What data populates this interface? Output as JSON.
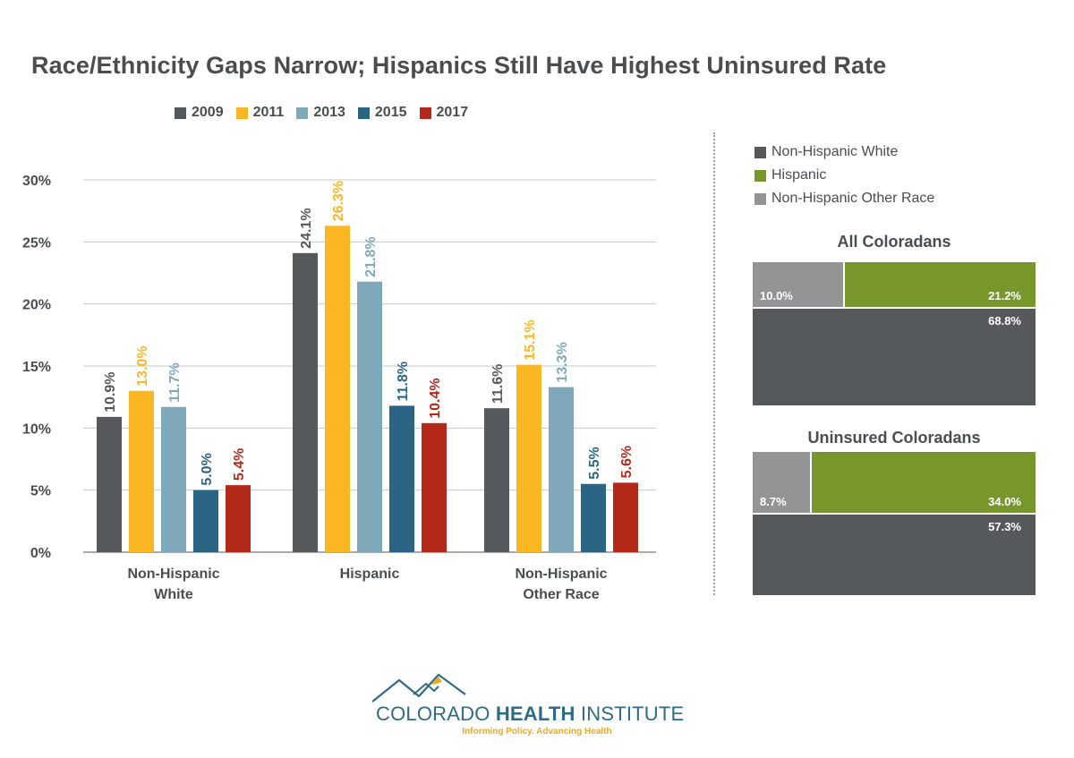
{
  "header": {
    "title": "Race/Ethnicity Gaps Narrow; Hispanics Still Have Highest Uninsured Rate"
  },
  "chart_data": [
    {
      "type": "bar",
      "categories": [
        [
          "Non-Hispanic",
          "White"
        ],
        [
          "Hispanic"
        ],
        [
          "Non-Hispanic",
          "Other Race"
        ]
      ],
      "series": [
        {
          "name": "2009",
          "color": "#55595c",
          "values": [
            10.9,
            24.1,
            11.6
          ],
          "labels": [
            "10.9%",
            "24.1%",
            "11.6%"
          ]
        },
        {
          "name": "2011",
          "color": "#fbb623",
          "values": [
            13.0,
            26.3,
            15.1
          ],
          "labels": [
            "13.0%",
            "26.3%",
            "15.1%"
          ]
        },
        {
          "name": "2013",
          "color": "#7fa9bb",
          "values": [
            11.7,
            21.8,
            13.3
          ],
          "labels": [
            "11.7%",
            "21.8%",
            "13.3%"
          ]
        },
        {
          "name": "2015",
          "color": "#2c6584",
          "values": [
            5.0,
            11.8,
            5.5
          ],
          "labels": [
            "5.0%",
            "11.8%",
            "5.5%"
          ]
        },
        {
          "name": "2017",
          "color": "#b5291b",
          "values": [
            5.4,
            10.4,
            5.6
          ],
          "labels": [
            "5.4%",
            "10.4%",
            "5.6%"
          ]
        }
      ],
      "yticks": [
        "0%",
        "5%",
        "10%",
        "15%",
        "20%",
        "25%",
        "30%"
      ],
      "ylim": [
        0,
        30
      ],
      "grid": true,
      "legend": "top"
    },
    {
      "type": "bar",
      "title": "All Coloradans",
      "categories": [
        "Non-Hispanic Other Race",
        "Hispanic",
        "Non-Hispanic White"
      ],
      "values": [
        10.0,
        21.2,
        68.8
      ],
      "labels": [
        "10.0%",
        "21.2%",
        "68.8%"
      ]
    },
    {
      "type": "bar",
      "title": "Uninsured Coloradans",
      "categories": [
        "Non-Hispanic Other Race",
        "Hispanic",
        "Non-Hispanic White"
      ],
      "values": [
        8.7,
        34.0,
        57.3
      ],
      "labels": [
        "8.7%",
        "34.0%",
        "57.3%"
      ]
    }
  ],
  "composition_legend": [
    {
      "label": "Non-Hispanic White",
      "color": "#55595c"
    },
    {
      "label": "Hispanic",
      "color": "#77962c"
    },
    {
      "label": "Non-Hispanic Other Race",
      "color": "#929496"
    }
  ],
  "footer": {
    "brand_light_1": "COLORADO ",
    "brand_bold": "HEALTH",
    "brand_light_2": " INSTITUTE",
    "tagline": "Informing Policy. Advancing Health"
  }
}
